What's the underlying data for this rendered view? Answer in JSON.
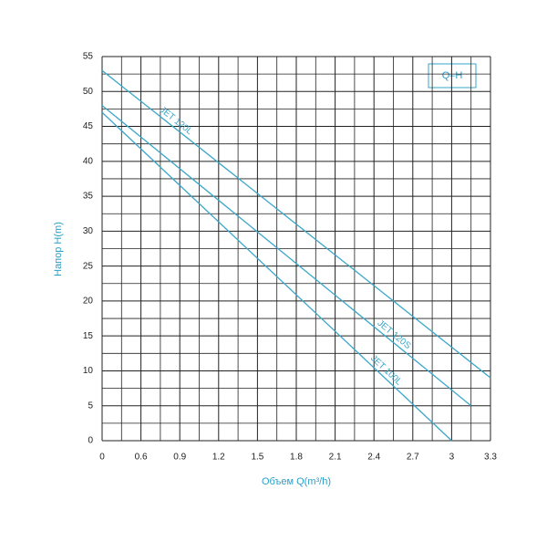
{
  "chart_data": {
    "type": "line",
    "xlabel": "Объем Q(m³/h)",
    "ylabel": "Напор H(m)",
    "legend_label": "Q–H",
    "xlim": [
      0,
      3.3
    ],
    "xticks": [
      0,
      0.6,
      0.9,
      1.2,
      1.5,
      1.8,
      2.1,
      2.4,
      2.7,
      3.0,
      3.3
    ],
    "ylim": [
      0,
      55
    ],
    "yticks": [
      0,
      5,
      10,
      15,
      20,
      25,
      30,
      35,
      40,
      45,
      50,
      55
    ],
    "grid": true,
    "color": "#3aa7c9",
    "series": [
      {
        "name": "JET 120L",
        "color": "#3aa7c9",
        "x": [
          0,
          3.3
        ],
        "values": [
          53,
          9
        ]
      },
      {
        "name": "JET 120S",
        "color": "#3aa7c9",
        "x": [
          0,
          3.15
        ],
        "values": [
          48,
          5
        ]
      },
      {
        "name": "JET 100L",
        "color": "#3aa7c9",
        "x": [
          0,
          3.0
        ],
        "values": [
          47,
          0
        ]
      }
    ]
  }
}
